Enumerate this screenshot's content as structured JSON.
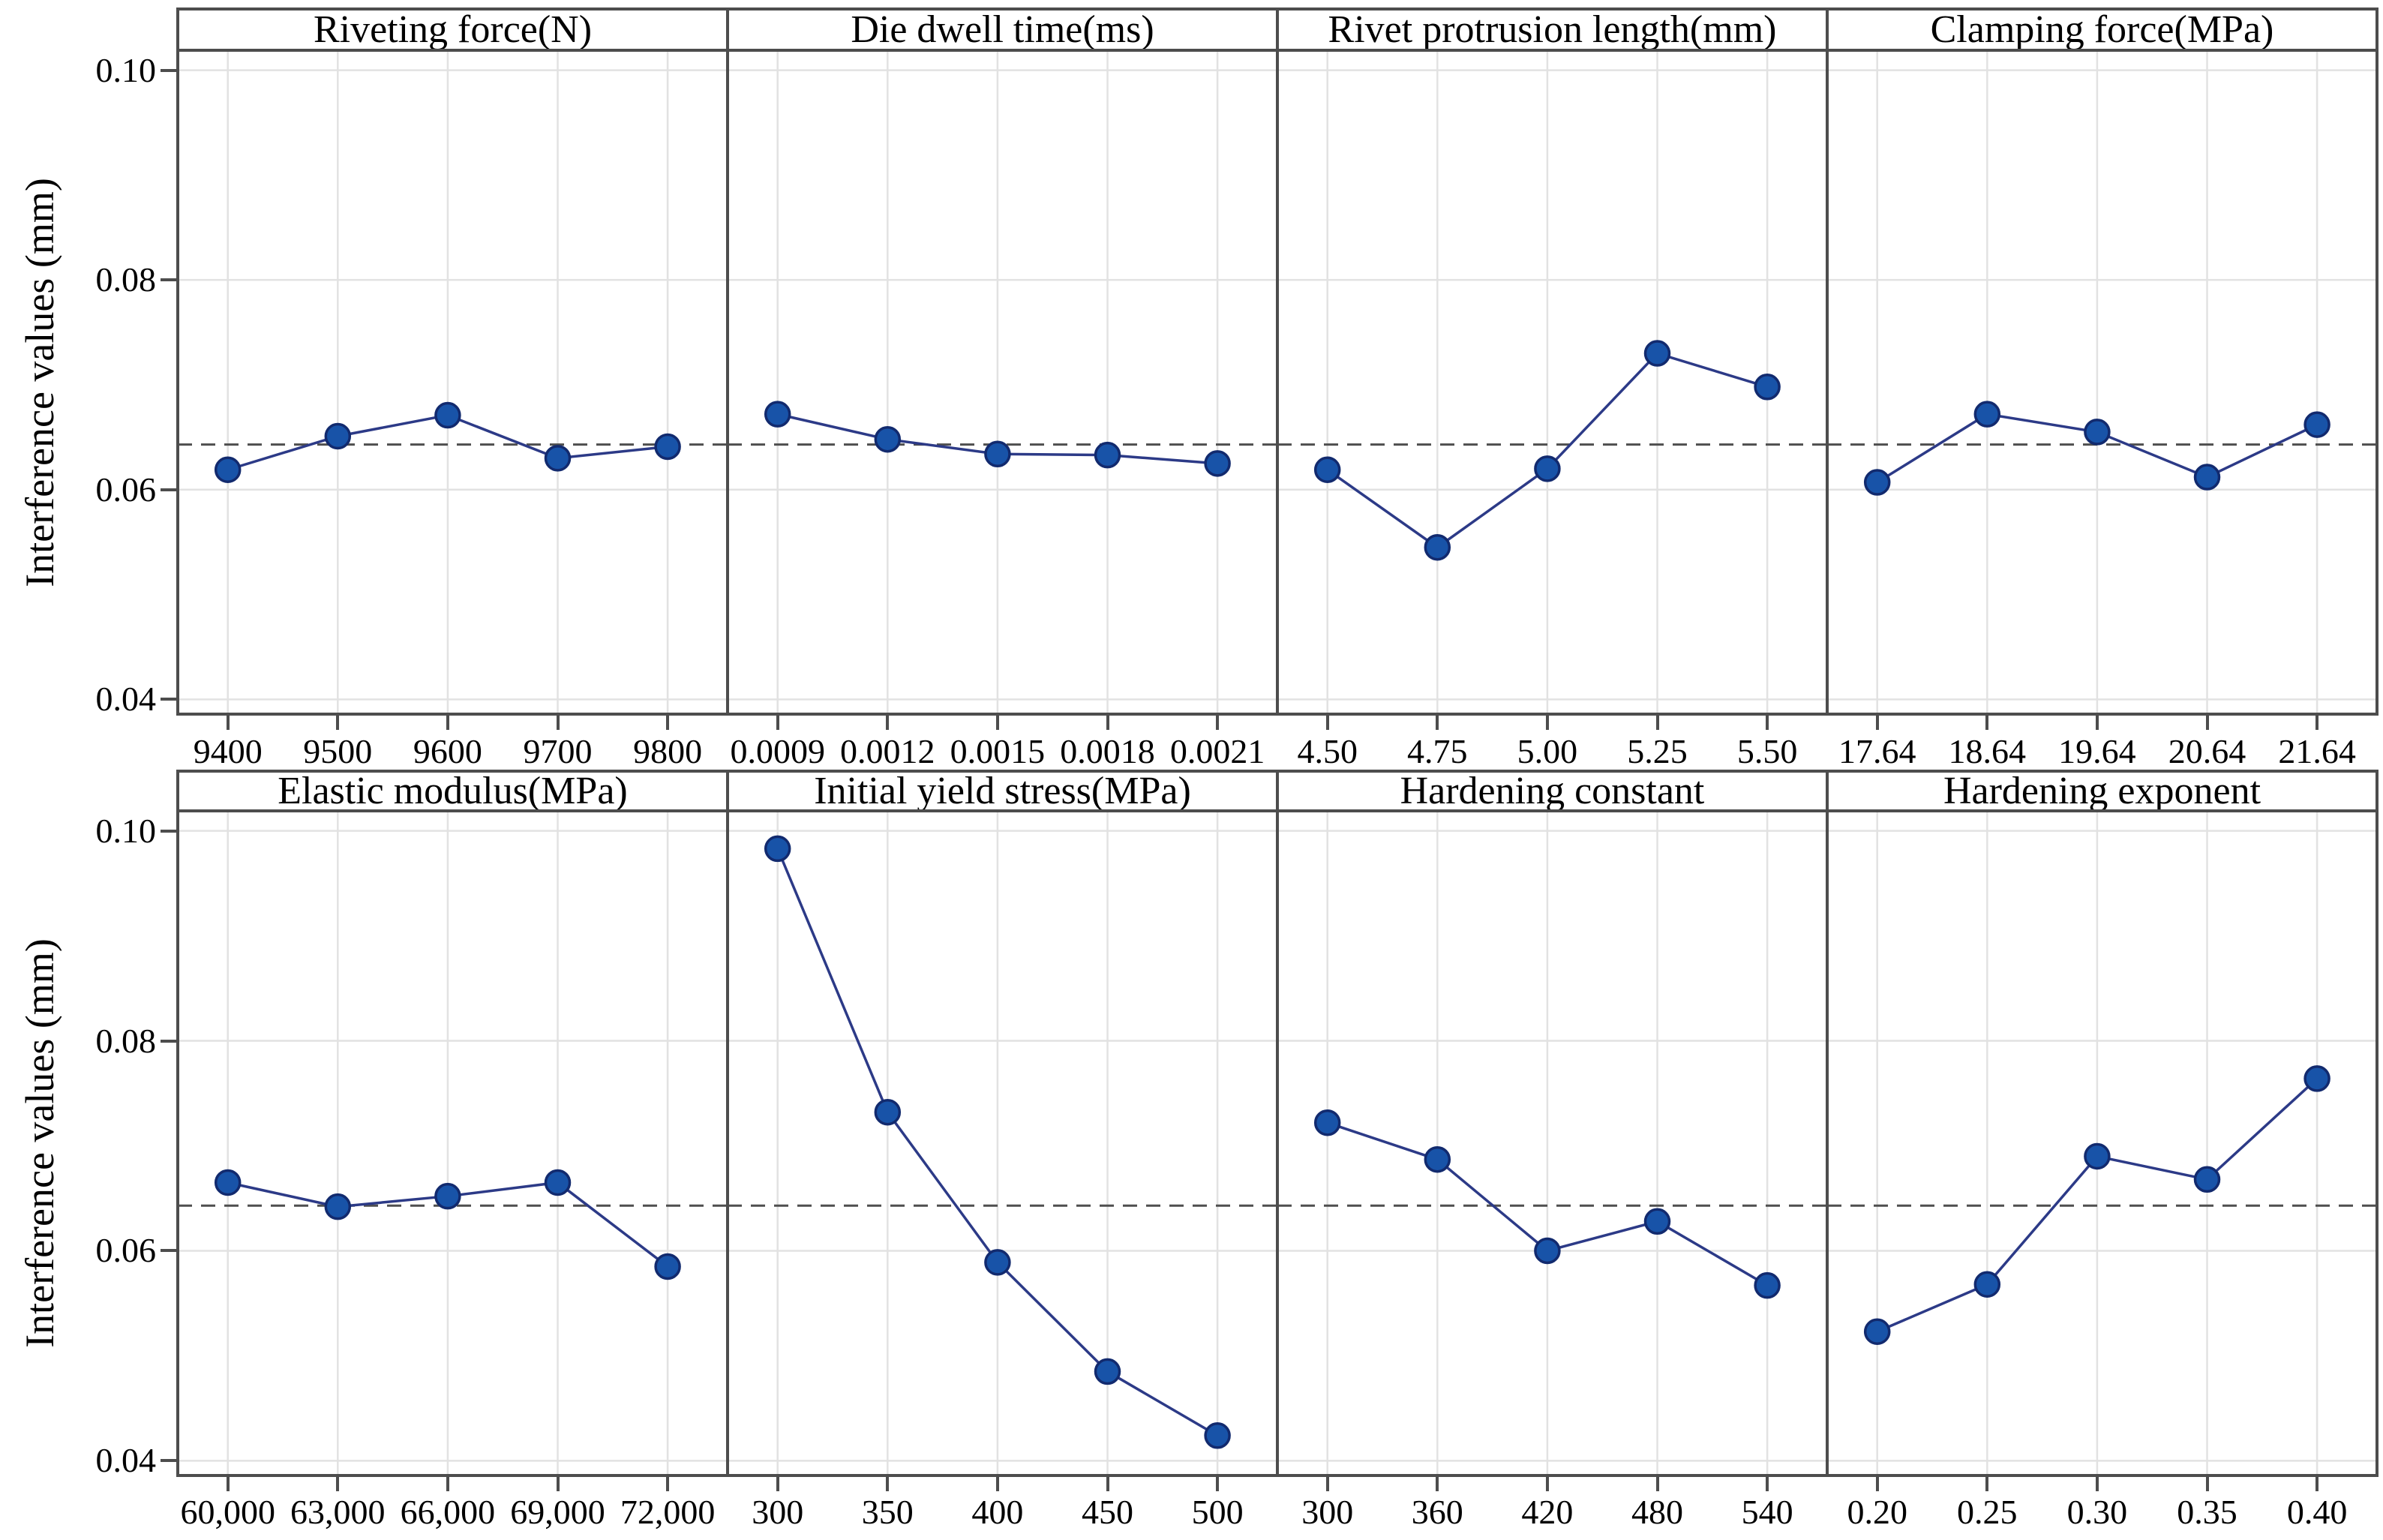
{
  "chart_data": {
    "type": "line",
    "title": "",
    "xlabel": "",
    "ylabel": "Interference values (mm)",
    "ylim": [
      0.04,
      0.1
    ],
    "yticks": [
      0.1,
      0.08,
      0.06,
      0.04
    ],
    "ytick_labels": [
      "0.10",
      "0.08",
      "0.06",
      "0.04"
    ],
    "grid": true,
    "legend_position": "none",
    "mean_line": 0.0643,
    "marker": "circle",
    "rows": [
      {
        "panels": [
          {
            "title": "Riveting force(N)",
            "categories": [
              "9400",
              "9500",
              "9600",
              "9700",
              "9800"
            ],
            "values": [
              0.0619,
              0.0651,
              0.0671,
              0.063,
              0.0641
            ]
          },
          {
            "title": "Die dwell time(ms)",
            "categories": [
              "0.0009",
              "0.0012",
              "0.0015",
              "0.0018",
              "0.0021"
            ],
            "values": [
              0.0672,
              0.0648,
              0.0634,
              0.0633,
              0.0625
            ]
          },
          {
            "title": "Rivet protrusion length(mm)",
            "categories": [
              "4.50",
              "4.75",
              "5.00",
              "5.25",
              "5.50"
            ],
            "values": [
              0.0619,
              0.0545,
              0.062,
              0.073,
              0.0698
            ]
          },
          {
            "title": "Clamping force(MPa)",
            "categories": [
              "17.64",
              "18.64",
              "19.64",
              "20.64",
              "21.64"
            ],
            "values": [
              0.0607,
              0.0672,
              0.0655,
              0.0612,
              0.0662
            ]
          }
        ]
      },
      {
        "panels": [
          {
            "title": "Elastic modulus(MPa)",
            "categories": [
              "60,000",
              "63,000",
              "66,000",
              "69,000",
              "72,000"
            ],
            "values": [
              0.0665,
              0.0642,
              0.0652,
              0.0665,
              0.0585
            ]
          },
          {
            "title": "Initial yield stress(MPa)",
            "categories": [
              "300",
              "350",
              "400",
              "450",
              "500"
            ],
            "values": [
              0.0983,
              0.0732,
              0.0589,
              0.0485,
              0.0424
            ]
          },
          {
            "title": "Hardening constant",
            "categories": [
              "300",
              "360",
              "420",
              "480",
              "540"
            ],
            "values": [
              0.0722,
              0.0687,
              0.06,
              0.0628,
              0.0567
            ]
          },
          {
            "title": "Hardening exponent",
            "categories": [
              "0.20",
              "0.25",
              "0.30",
              "0.35",
              "0.40"
            ],
            "values": [
              0.0523,
              0.0568,
              0.069,
              0.0668,
              0.0764
            ]
          }
        ]
      }
    ]
  },
  "colors": {
    "marker_fill": "#1853a8",
    "marker_stroke": "#122a6e",
    "series_line": "#2c3a87",
    "gridline": "#e2e2e2",
    "mean_dash": "#4f4f4f",
    "border": "#4d4d4d",
    "text": "#000000",
    "background": "#ffffff"
  }
}
